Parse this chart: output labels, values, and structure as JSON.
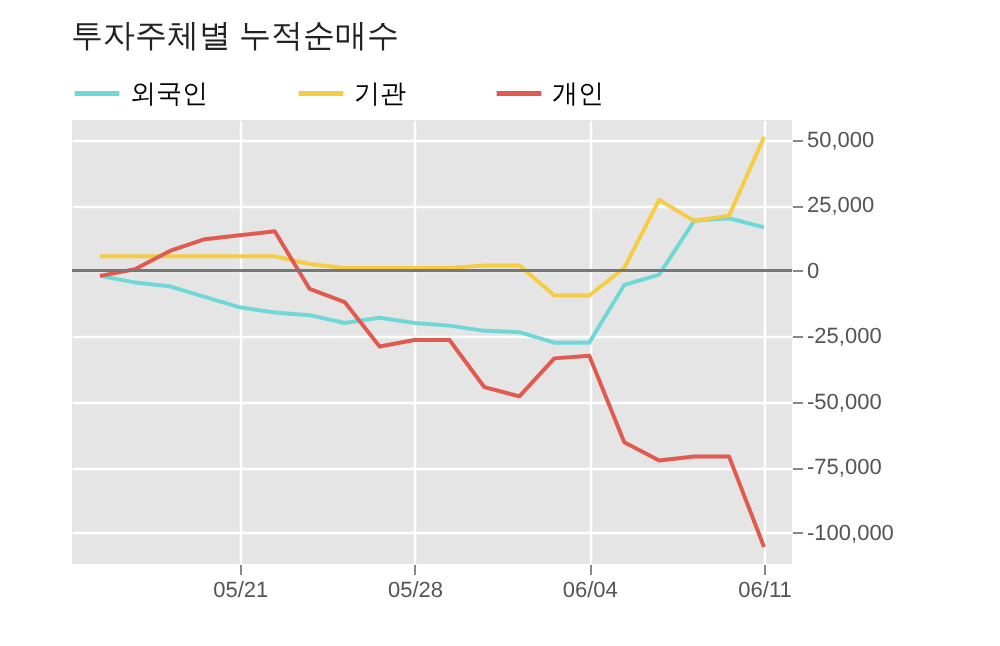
{
  "chart_data": {
    "type": "line",
    "title": "투자주체별 누적순매수",
    "categories": [
      null,
      null,
      null,
      null,
      "05/21",
      null,
      null,
      null,
      null,
      "05/28",
      null,
      null,
      null,
      null,
      "06/04",
      null,
      null,
      null,
      null,
      "06/11"
    ],
    "series": [
      {
        "name": "외국인",
        "color": "#6fd8d6",
        "values": [
          -2000,
          -4500,
          -6000,
          -10000,
          -14000,
          -16000,
          -17000,
          -20000,
          -18000,
          -20000,
          -21000,
          -23000,
          -23500,
          -27500,
          -27500,
          -5500,
          -1500,
          19000,
          20000,
          16500
        ]
      },
      {
        "name": "기관",
        "color": "#f5cc44",
        "values": [
          5500,
          5500,
          5500,
          5500,
          5500,
          5500,
          2500,
          1000,
          1000,
          1000,
          1000,
          2000,
          2000,
          -9500,
          -9500,
          1000,
          27000,
          19000,
          21000,
          51000
        ]
      },
      {
        "name": "개인",
        "color": "#e05a4f",
        "values": [
          -2000,
          500,
          7500,
          12000,
          13500,
          15000,
          -7000,
          -12000,
          -29000,
          -26500,
          -26500,
          -44500,
          -48000,
          -33500,
          -32500,
          -65500,
          -72500,
          -71000,
          -71000,
          -105500
        ]
      }
    ],
    "ylim": [
      -112000,
      57500
    ],
    "yticks": [
      {
        "value": -100000,
        "label": "-100,000"
      },
      {
        "value": -75000,
        "label": "-75,000"
      },
      {
        "value": -50000,
        "label": "-50,000"
      },
      {
        "value": -25000,
        "label": "-25,000"
      },
      0,
      {
        "value": 25000,
        "label": "25,000"
      },
      {
        "value": 50000,
        "label": "50,000"
      }
    ],
    "ref_lines": [
      {
        "axis": "y",
        "value": 0,
        "color": "#777777"
      }
    ],
    "grid": true,
    "legend": "top left",
    "marker": "none",
    "line_style": "solid"
  }
}
